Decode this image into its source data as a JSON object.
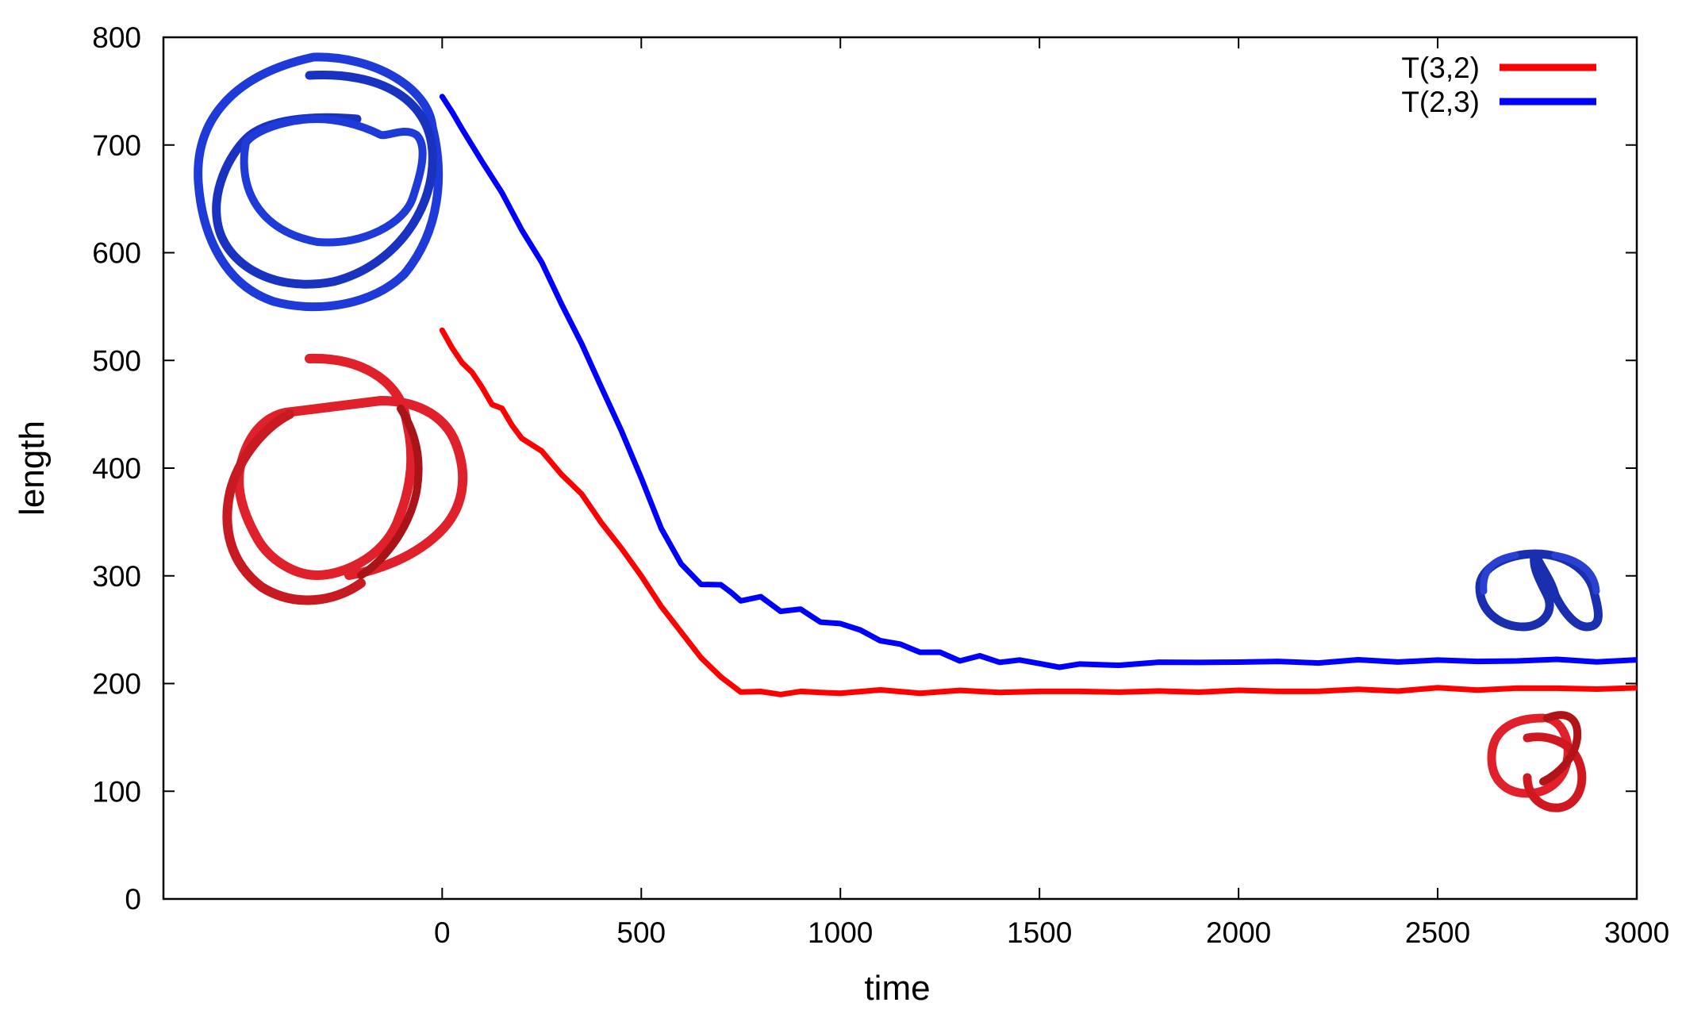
{
  "chart_data": {
    "type": "line",
    "xlabel": "time",
    "ylabel": "length",
    "xlim": [
      -700,
      3000
    ],
    "ylim": [
      0,
      800
    ],
    "xticks": [
      0,
      500,
      1000,
      1500,
      2000,
      2500,
      3000
    ],
    "yticks": [
      0,
      100,
      200,
      300,
      400,
      500,
      600,
      700,
      800
    ],
    "grid": false,
    "legend_position": "top-right",
    "series": [
      {
        "name": "T(3,2)",
        "color": "#ff0000",
        "x": [
          0,
          25,
          50,
          75,
          100,
          125,
          150,
          175,
          200,
          250,
          300,
          350,
          400,
          450,
          500,
          550,
          600,
          650,
          700,
          750,
          800,
          850,
          900,
          950,
          1000,
          1100,
          1200,
          1300,
          1400,
          1500,
          1600,
          1700,
          1800,
          1900,
          2000,
          2100,
          2200,
          2300,
          2400,
          2500,
          2600,
          2700,
          2800,
          2900,
          3000
        ],
        "y": [
          528,
          512,
          497,
          490,
          474,
          460,
          455,
          440,
          428,
          415,
          395,
          375,
          350,
          325,
          300,
          272,
          247,
          225,
          205,
          193,
          192,
          190,
          193,
          191,
          192,
          193,
          192,
          193,
          192,
          193,
          192,
          193,
          192,
          193,
          193,
          193,
          193,
          194,
          194,
          195,
          195,
          195,
          196,
          195,
          196
        ]
      },
      {
        "name": "T(2,3)",
        "color": "#0000ff",
        "x": [
          0,
          25,
          50,
          100,
          150,
          200,
          250,
          300,
          350,
          400,
          450,
          500,
          550,
          600,
          650,
          700,
          725,
          750,
          800,
          850,
          900,
          950,
          1000,
          1050,
          1100,
          1150,
          1200,
          1250,
          1300,
          1350,
          1400,
          1450,
          1500,
          1550,
          1600,
          1700,
          1800,
          1900,
          2000,
          2100,
          2200,
          2300,
          2400,
          2500,
          2600,
          2700,
          2800,
          2900,
          3000
        ],
        "y": [
          745,
          730,
          715,
          685,
          655,
          622,
          590,
          553,
          515,
          475,
          435,
          390,
          345,
          310,
          293,
          291,
          285,
          277,
          280,
          268,
          268,
          258,
          255,
          250,
          240,
          236,
          230,
          228,
          222,
          225,
          220,
          222,
          218,
          216,
          217,
          218,
          219,
          220,
          220,
          220,
          220,
          221,
          221,
          221,
          221,
          221,
          222,
          221,
          222
        ]
      }
    ]
  },
  "knot_icons": [
    {
      "name": "unknot-blue-icon",
      "color": "#1e3ad8"
    },
    {
      "name": "trefoil-red-loose-icon",
      "color": "#e0202a"
    },
    {
      "name": "trefoil-blue-tight-icon",
      "color": "#1a2fb0"
    },
    {
      "name": "trefoil-red-tight-icon",
      "color": "#d01820"
    }
  ]
}
